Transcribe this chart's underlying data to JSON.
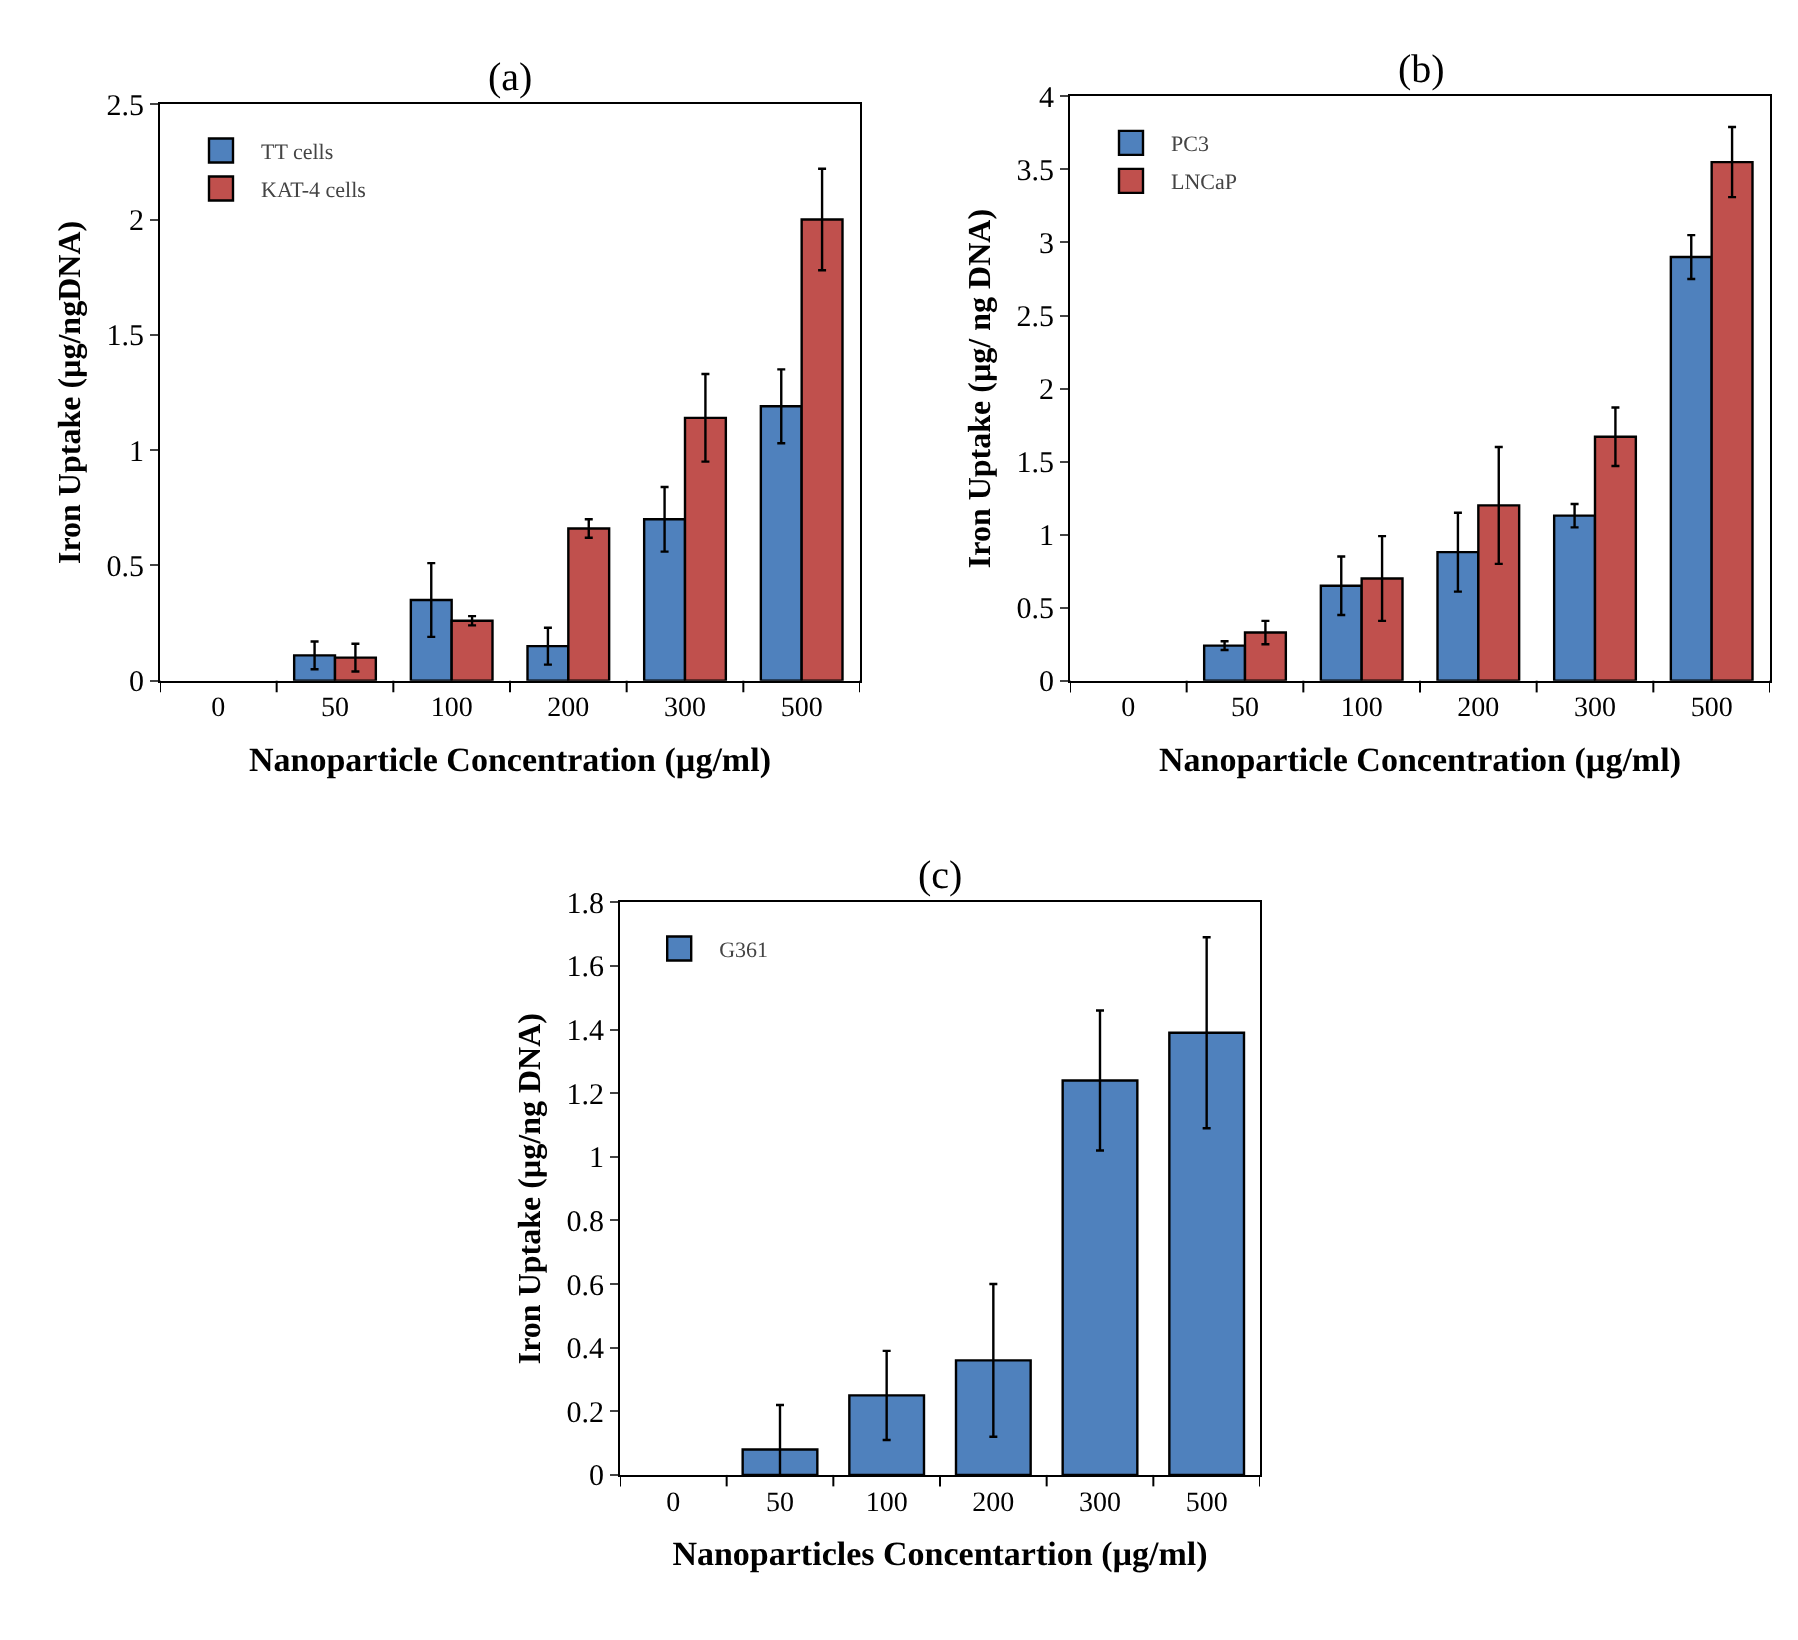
{
  "chart_data": [
    {
      "type": "bar",
      "title": "(a)",
      "xlabel": "Nanoparticle Concentration (µg/ml)",
      "ylabel": "Iron Uptake (µg/ngDNA)",
      "categories": [
        "0",
        "50",
        "100",
        "200",
        "300",
        "500"
      ],
      "ylim": [
        0,
        2.5
      ],
      "yticks": [
        0,
        0.5,
        1,
        1.5,
        2,
        2.5
      ],
      "legend": "top left",
      "series": [
        {
          "name": "TT cells",
          "color": "#4f81bd",
          "values": [
            null,
            0.11,
            0.35,
            0.15,
            0.7,
            1.19
          ],
          "errors": [
            null,
            0.06,
            0.16,
            0.08,
            0.14,
            0.16
          ]
        },
        {
          "name": "KAT-4 cells",
          "color": "#c0504d",
          "values": [
            null,
            0.1,
            0.26,
            0.66,
            1.14,
            2.0
          ],
          "errors": [
            null,
            0.06,
            0.02,
            0.04,
            0.19,
            0.22
          ]
        }
      ]
    },
    {
      "type": "bar",
      "title": "(b)",
      "xlabel": "Nanoparticle Concentration (µg/ml)",
      "ylabel": "Iron Uptake (µg/ ng DNA)",
      "categories": [
        "0",
        "50",
        "100",
        "200",
        "300",
        "500"
      ],
      "ylim": [
        0,
        4
      ],
      "yticks": [
        0,
        0.5,
        1,
        1.5,
        2,
        2.5,
        3,
        3.5,
        4
      ],
      "legend": "top left",
      "series": [
        {
          "name": "PC3",
          "color": "#4f81bd",
          "values": [
            null,
            0.24,
            0.65,
            0.88,
            1.13,
            2.9
          ],
          "errors": [
            null,
            0.03,
            0.2,
            0.27,
            0.08,
            0.15
          ]
        },
        {
          "name": "LNCaP",
          "color": "#c0504d",
          "values": [
            null,
            0.33,
            0.7,
            1.2,
            1.67,
            3.55
          ],
          "errors": [
            null,
            0.08,
            0.29,
            0.4,
            0.2,
            0.24
          ]
        }
      ]
    },
    {
      "type": "bar",
      "title": "(c)",
      "xlabel": "Nanoparticles Concentartion (µg/ml)",
      "ylabel": "Iron Uptake (µg/ng DNA)",
      "categories": [
        "0",
        "50",
        "100",
        "200",
        "300",
        "500"
      ],
      "ylim": [
        0,
        1.8
      ],
      "yticks": [
        0,
        0.2,
        0.4,
        0.6,
        0.8,
        1,
        1.2,
        1.4,
        1.6,
        1.8
      ],
      "legend": "top left",
      "series": [
        {
          "name": "G361",
          "color": "#4f81bd",
          "values": [
            null,
            0.08,
            0.25,
            0.36,
            1.24,
            1.39
          ],
          "errors": [
            null,
            0.14,
            0.14,
            0.24,
            0.22,
            0.3
          ]
        }
      ]
    }
  ]
}
